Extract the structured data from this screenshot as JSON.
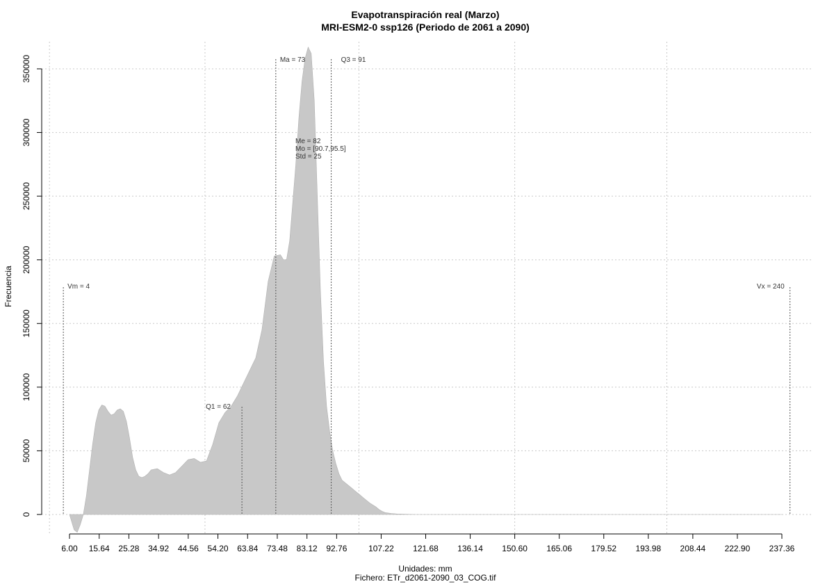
{
  "chart_data": {
    "type": "area",
    "title": "Evapotranspiración real (Marzo)",
    "subtitle": "MRI-ESM2-0 ssp126 (Periodo de 2061 a 2090)",
    "xlabel": "Unidades: mm",
    "caption": "Fichero: ETr_d2061-2090_03_COG.tif",
    "ylabel": "Frecuencia",
    "xlim": [
      6.0,
      237.36
    ],
    "ylim": [
      0,
      350000
    ],
    "grid": true,
    "fill_color": "#c8c8c8",
    "x_ticks": [
      "6.00",
      "15.64",
      "25.28",
      "34.92",
      "44.56",
      "54.20",
      "63.84",
      "73.48",
      "83.12",
      "92.76",
      "107.22",
      "121.68",
      "136.14",
      "150.60",
      "165.06",
      "179.52",
      "193.98",
      "208.44",
      "222.90",
      "237.36"
    ],
    "x_tick_values": [
      6.0,
      15.64,
      25.28,
      34.92,
      44.56,
      54.2,
      63.84,
      73.48,
      83.12,
      92.76,
      107.22,
      121.68,
      136.14,
      150.6,
      165.06,
      179.52,
      193.98,
      208.44,
      222.9,
      237.36
    ],
    "y_ticks": [
      "0",
      "50000",
      "100000",
      "150000",
      "200000",
      "250000",
      "300000",
      "350000"
    ],
    "y_tick_values": [
      0,
      50000,
      100000,
      150000,
      200000,
      250000,
      300000,
      350000
    ],
    "x_grid": [
      -0.5,
      50.0,
      100.0,
      150.6,
      200.0
    ],
    "density": {
      "x": [
        6.0,
        7.5,
        8.5,
        9.5,
        10.5,
        11.5,
        12.5,
        13.5,
        14.5,
        15.5,
        16.5,
        17.5,
        18.5,
        19.5,
        20.5,
        21.5,
        22.5,
        23.5,
        24.5,
        25.5,
        26.5,
        27.5,
        28.5,
        29.5,
        30.5,
        31.5,
        32.5,
        34.5,
        36.5,
        38.5,
        40.5,
        42.5,
        44.5,
        46.5,
        48.5,
        50.5,
        52.5,
        54.5,
        56.5,
        58.5,
        60.5,
        62.5,
        64.5,
        66.5,
        68.5,
        70.5,
        72.5,
        74.5,
        75.5,
        76.5,
        77.5,
        78.5,
        79.5,
        80.5,
        81.5,
        82.5,
        83.5,
        84.5,
        85.5,
        86.5,
        87.5,
        88.5,
        89.5,
        90.5,
        91.5,
        92.5,
        93.5,
        94.5,
        95.5,
        96.5,
        97.5,
        98.5,
        99.5,
        100.5,
        101.5,
        102.5,
        103.5,
        104.5,
        105.5,
        106.5,
        107.5,
        108.5,
        110.5,
        112.5,
        114.5,
        116.5,
        118.5,
        120.5,
        122.5,
        124.5,
        127.5,
        131.5,
        136.5,
        145,
        160,
        180,
        200,
        220,
        237.36
      ],
      "y": [
        0,
        -12000,
        -14000,
        -8000,
        0,
        15000,
        35000,
        55000,
        72000,
        82000,
        86000,
        85000,
        81000,
        78000,
        79000,
        82000,
        83000,
        81000,
        73000,
        60000,
        45000,
        35000,
        30000,
        29000,
        30000,
        32000,
        35000,
        36000,
        33000,
        31000,
        33000,
        38000,
        43000,
        44000,
        41000,
        42000,
        55000,
        72000,
        80000,
        85000,
        93000,
        103000,
        113000,
        123000,
        145000,
        183000,
        203000,
        204000,
        200000,
        200000,
        215000,
        245000,
        275000,
        312000,
        340000,
        358000,
        367000,
        362000,
        325000,
        250000,
        175000,
        120000,
        85000,
        65000,
        50000,
        40000,
        32000,
        27000,
        25000,
        23000,
        21000,
        19000,
        17000,
        15000,
        13000,
        11000,
        9000,
        7500,
        6000,
        4000,
        2500,
        1500,
        800,
        400,
        200,
        100,
        0,
        0,
        0,
        0,
        0,
        0,
        0,
        0,
        0,
        0,
        0,
        0,
        0
      ]
    },
    "stat_lines": [
      {
        "name": "vm",
        "x": 4,
        "label": "Vm = 4"
      },
      {
        "name": "q1",
        "x": 62,
        "label": "Q1 = 62"
      },
      {
        "name": "ma",
        "x": 73,
        "label": "Ma = 73"
      },
      {
        "name": "q3",
        "x": 91,
        "label": "Q3 = 91"
      },
      {
        "name": "vx",
        "x": 240,
        "label": "Vx = 240"
      }
    ],
    "stats_block": [
      "Me = 82",
      "Mo = [90.7,95.5]",
      "Std = 25"
    ]
  }
}
